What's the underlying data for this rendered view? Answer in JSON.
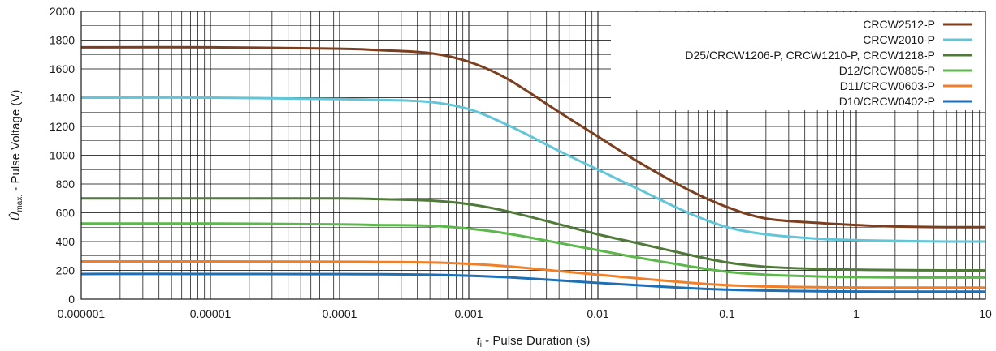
{
  "chart_data": {
    "type": "line",
    "title": "",
    "xlabel": {
      "symbol": "t",
      "sub": "i",
      "text": " - Pulse Duration (s)"
    },
    "ylabel": {
      "symbol": "Û",
      "sub": "max.",
      "text": " - Pulse Voltage (V)"
    },
    "x_scale": "log",
    "xlim": [
      1e-06,
      10
    ],
    "ylim": [
      0,
      2000
    ],
    "x_ticks": [
      1e-06,
      1e-05,
      0.0001,
      0.001,
      0.01,
      0.1,
      1,
      10
    ],
    "x_tick_labels": [
      "0.000001",
      "0.00001",
      "0.0001",
      "0.001",
      "0.01",
      "0.1",
      "1",
      "10"
    ],
    "y_ticks": [
      0,
      200,
      400,
      600,
      800,
      1000,
      1200,
      1400,
      1600,
      1800,
      2000
    ],
    "y_tick_labels": [
      "0",
      "200",
      "400",
      "600",
      "800",
      "1000",
      "1200",
      "1400",
      "1600",
      "1800",
      "2000"
    ],
    "grid": true,
    "legend_position": "top-right",
    "series": [
      {
        "name": "CRCW2512-P",
        "color": "#7b3f1f",
        "x": [
          1e-06,
          1e-05,
          0.0001,
          0.0002,
          0.0005,
          0.001,
          0.002,
          0.005,
          0.01,
          0.02,
          0.05,
          0.1,
          0.2,
          0.5,
          1,
          2,
          5,
          10
        ],
        "y": [
          1750,
          1750,
          1740,
          1730,
          1710,
          1650,
          1530,
          1300,
          1130,
          960,
          760,
          640,
          560,
          530,
          515,
          505,
          500,
          500
        ]
      },
      {
        "name": "CRCW2010-P",
        "color": "#62c6d8",
        "x": [
          1e-06,
          1e-05,
          0.0001,
          0.0002,
          0.0005,
          0.001,
          0.002,
          0.005,
          0.01,
          0.02,
          0.05,
          0.1,
          0.2,
          0.5,
          1,
          2,
          5,
          10
        ],
        "y": [
          1400,
          1400,
          1390,
          1385,
          1370,
          1320,
          1210,
          1030,
          900,
          770,
          600,
          500,
          450,
          420,
          410,
          405,
          400,
          400
        ]
      },
      {
        "name": "D25/CRCW1206-P, CRCW1210-P, CRCW1218-P",
        "color": "#4f7a3a",
        "x": [
          1e-06,
          1e-05,
          0.0001,
          0.0002,
          0.0005,
          0.001,
          0.002,
          0.005,
          0.01,
          0.02,
          0.05,
          0.1,
          0.2,
          0.5,
          1,
          2,
          5,
          10
        ],
        "y": [
          700,
          700,
          700,
          695,
          685,
          660,
          610,
          520,
          450,
          390,
          310,
          255,
          225,
          210,
          205,
          202,
          200,
          200
        ]
      },
      {
        "name": "D12/CRCW0805-P",
        "color": "#5cb84a",
        "x": [
          1e-06,
          1e-05,
          0.0001,
          0.0002,
          0.0005,
          0.001,
          0.002,
          0.005,
          0.01,
          0.02,
          0.05,
          0.1,
          0.2,
          0.5,
          1,
          2,
          5,
          10
        ],
        "y": [
          525,
          525,
          520,
          515,
          510,
          490,
          455,
          390,
          340,
          290,
          230,
          190,
          170,
          158,
          153,
          151,
          150,
          150
        ]
      },
      {
        "name": "D11/CRCW0603-P",
        "color": "#f07f2a",
        "x": [
          1e-06,
          1e-05,
          0.0001,
          0.0002,
          0.0005,
          0.001,
          0.002,
          0.005,
          0.01,
          0.02,
          0.05,
          0.1,
          0.2,
          0.5,
          1,
          2,
          5,
          10
        ],
        "y": [
          262,
          262,
          260,
          258,
          255,
          245,
          228,
          195,
          170,
          145,
          115,
          97,
          88,
          83,
          81,
          80,
          80,
          80
        ]
      },
      {
        "name": "D10/CRCW0402-P",
        "color": "#1f6fb5",
        "x": [
          1e-06,
          1e-05,
          0.0001,
          0.0002,
          0.0005,
          0.001,
          0.002,
          0.005,
          0.01,
          0.02,
          0.05,
          0.1,
          0.2,
          0.5,
          1,
          2,
          5,
          10
        ],
        "y": [
          175,
          175,
          174,
          173,
          170,
          163,
          152,
          130,
          113,
          97,
          77,
          66,
          60,
          55,
          53,
          52,
          52,
          52
        ]
      }
    ]
  }
}
